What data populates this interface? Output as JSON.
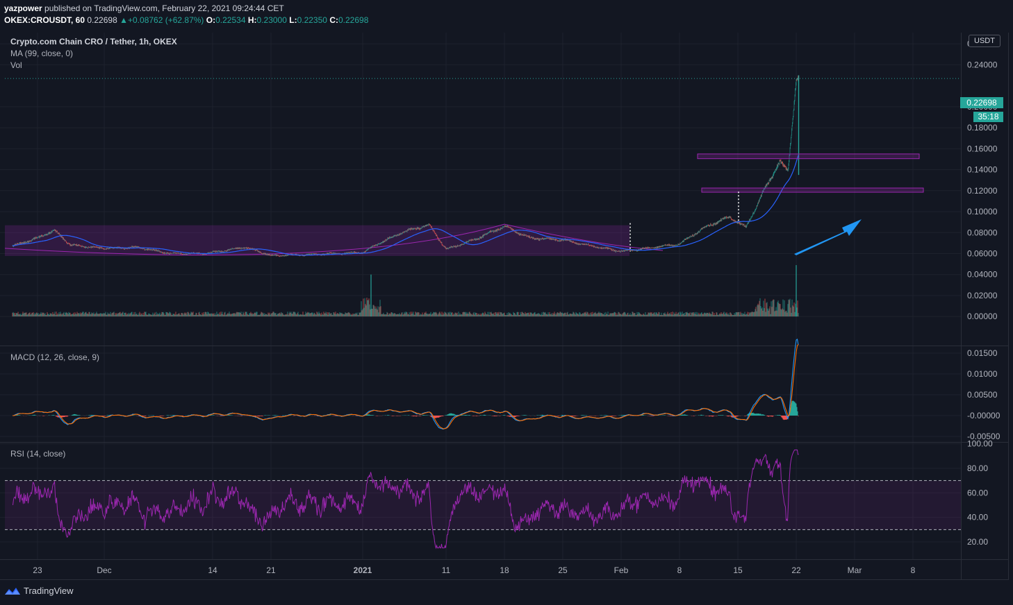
{
  "header": {
    "author": "yazpower",
    "published_text": "published on TradingView.com, February 22, 2021 09:24:44 CET",
    "symbol": "OKEX:CROUSDT, 60",
    "last": "0.22698",
    "change": "+0.08762 (+62.87%)",
    "o_label": "O:",
    "o_value": "0.22534",
    "h_label": "H:",
    "h_value": "0.23000",
    "l_label": "L:",
    "l_value": "0.22350",
    "c_label": "C:",
    "c_value": "0.22698"
  },
  "legend": {
    "title": "Crypto.com Chain CRO / Tether, 1h, OKEX",
    "ma": "MA (99, close, 0)",
    "vol": "Vol",
    "macd": "MACD (12, 26, close, 9)",
    "rsi": "RSI (14, close)"
  },
  "currency_label": "USDT",
  "last_price_label": "0.22698",
  "countdown_label": "35:18",
  "footer": {
    "brand": "TradingView"
  },
  "colors": {
    "background": "#131722",
    "up": "#26a69a",
    "down": "#ef5350",
    "ma": "#2962ff",
    "macd": "#2196f3",
    "signal": "#ff6d00",
    "rsi": "#9c27b0",
    "annotation": "#9c27b0",
    "arrow": "#2196f3"
  },
  "chart_data": {
    "type": "line",
    "x_ticks": [
      "23",
      "Dec",
      "14",
      "21",
      "2021",
      "11",
      "18",
      "25",
      "Feb",
      "8",
      "15",
      "22",
      "Mar",
      "8"
    ],
    "panes": {
      "price": {
        "y_ticks": [
          "0.26000",
          "0.24000",
          "0.20000",
          "0.18000",
          "0.16000",
          "0.14000",
          "0.12000",
          "0.10000",
          "0.08000",
          "0.06000",
          "0.04000",
          "0.02000",
          "0.00000"
        ],
        "ylim": [
          -0.0015,
          0.28
        ],
        "series_close_approx": [
          {
            "x": "Nov 20",
            "y": 0.067
          },
          {
            "x": "Nov 23",
            "y": 0.075
          },
          {
            "x": "Nov 25",
            "y": 0.082
          },
          {
            "x": "Nov 27",
            "y": 0.068
          },
          {
            "x": "Dec 1",
            "y": 0.065
          },
          {
            "x": "Dec 5",
            "y": 0.066
          },
          {
            "x": "Dec 9",
            "y": 0.06
          },
          {
            "x": "Dec 13",
            "y": 0.06
          },
          {
            "x": "Dec 18",
            "y": 0.066
          },
          {
            "x": "Dec 21",
            "y": 0.058
          },
          {
            "x": "Dec 25",
            "y": 0.059
          },
          {
            "x": "Jan 1",
            "y": 0.061
          },
          {
            "x": "Jan 3",
            "y": 0.07
          },
          {
            "x": "Jan 6",
            "y": 0.081
          },
          {
            "x": "Jan 9",
            "y": 0.087
          },
          {
            "x": "Jan 11",
            "y": 0.064
          },
          {
            "x": "Jan 14",
            "y": 0.072
          },
          {
            "x": "Jan 18",
            "y": 0.086
          },
          {
            "x": "Jan 21",
            "y": 0.075
          },
          {
            "x": "Jan 25",
            "y": 0.073
          },
          {
            "x": "Jan 28",
            "y": 0.068
          },
          {
            "x": "Feb 1",
            "y": 0.062
          },
          {
            "x": "Feb 5",
            "y": 0.066
          },
          {
            "x": "Feb 8",
            "y": 0.069
          },
          {
            "x": "Feb 11",
            "y": 0.085
          },
          {
            "x": "Feb 14",
            "y": 0.095
          },
          {
            "x": "Feb 16",
            "y": 0.085
          },
          {
            "x": "Feb 18",
            "y": 0.118
          },
          {
            "x": "Feb 20",
            "y": 0.148
          },
          {
            "x": "Feb 21",
            "y": 0.138
          },
          {
            "x": "Feb 22",
            "y": 0.22698
          }
        ],
        "annotations": {
          "resistance_zone": [
            0.1505,
            0.155
          ],
          "support_zone": [
            0.1185,
            0.1225
          ],
          "range_band": [
            0.063,
            0.087
          ]
        }
      },
      "volume": {
        "spikes": [
          {
            "x": "Jan 2",
            "y": 0.04
          },
          {
            "x": "Feb 22",
            "y": 0.049
          }
        ]
      },
      "macd": {
        "y_ticks": [
          "0.01500",
          "0.01000",
          "0.00500",
          "-0.00000",
          "-0.00500"
        ],
        "ylim": [
          -0.0062,
          0.0165
        ]
      },
      "rsi": {
        "y_ticks": [
          "100.00",
          "80.00",
          "60.00",
          "40.00",
          "20.00"
        ],
        "ylim": [
          12,
          100
        ],
        "band": [
          30,
          70
        ]
      }
    }
  }
}
